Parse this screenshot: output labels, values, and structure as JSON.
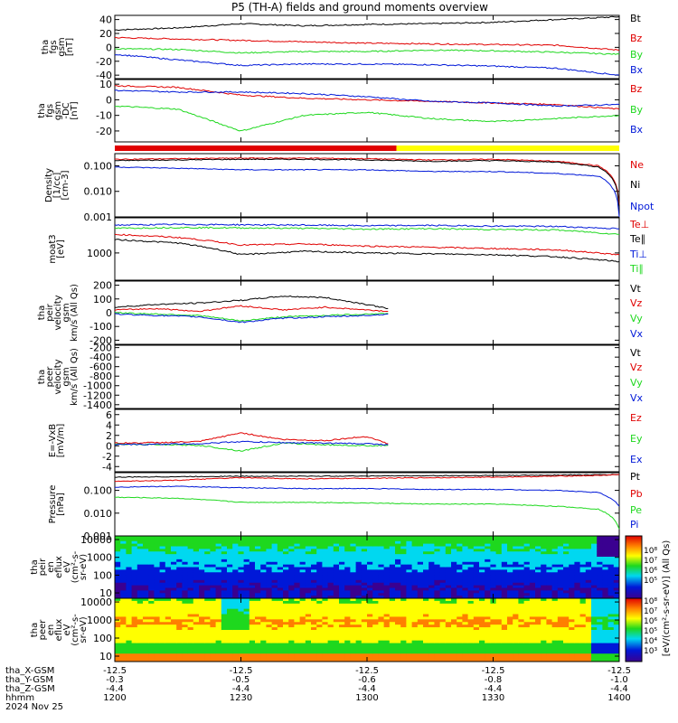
{
  "title": "P5 (TH-A) fields and ground moments overview",
  "colors": {
    "black": "#000000",
    "red": "#e00000",
    "green": "#1ed81e",
    "blue": "#0018d8",
    "yellow": "#ffff00"
  },
  "chart_data": [
    {
      "type": "line",
      "id": "fgs_gsm",
      "ylabel": [
        "tha",
        "fgs",
        "gsm",
        "[nT]"
      ],
      "ylim": [
        -45,
        46
      ],
      "yscale": "linear",
      "yticks": [
        -40,
        -20,
        0,
        20,
        40
      ],
      "x": [
        1200,
        1215,
        1230,
        1245,
        1300,
        1315,
        1330,
        1345,
        1400
      ],
      "series": [
        {
          "name": "Bt",
          "color": "#000000",
          "values": [
            25,
            28,
            34,
            31,
            33,
            34,
            36,
            40,
            44
          ]
        },
        {
          "name": "Bz",
          "color": "#e00000",
          "values": [
            14,
            12,
            10,
            8,
            6,
            5,
            4,
            3,
            -4
          ]
        },
        {
          "name": "By",
          "color": "#1ed81e",
          "values": [
            -2,
            -3,
            -8,
            -6,
            -6,
            -4,
            -5,
            -7,
            -10
          ]
        },
        {
          "name": "Bx",
          "color": "#0018d8",
          "values": [
            -10,
            -18,
            -26,
            -24,
            -24,
            -25,
            -27,
            -30,
            -40
          ]
        }
      ]
    },
    {
      "type": "line",
      "id": "fgs_gsm_detrended",
      "ylabel": [
        "tha",
        "fgs",
        "gsm",
        "-DC",
        "[nT]"
      ],
      "ylim": [
        -27,
        13
      ],
      "yscale": "linear",
      "yticks": [
        -20,
        -10,
        0,
        10
      ],
      "x": [
        1200,
        1215,
        1230,
        1245,
        1300,
        1315,
        1330,
        1345,
        1400
      ],
      "series": [
        {
          "name": "Bz",
          "color": "#e00000",
          "values": [
            9,
            8,
            3,
            1,
            0,
            -1,
            -2,
            -3,
            -6
          ]
        },
        {
          "name": "By",
          "color": "#1ed81e",
          "values": [
            -4,
            -6,
            -20,
            -10,
            -8,
            -12,
            -14,
            -12,
            -10
          ]
        },
        {
          "name": "Bx",
          "color": "#0018d8",
          "values": [
            6,
            5,
            5,
            4,
            2,
            -1,
            -2,
            -4,
            -3
          ]
        }
      ]
    },
    {
      "type": "line",
      "id": "density",
      "ylabel": [
        "Density",
        "[1/cc]",
        "[cm-3]"
      ],
      "ylim": [
        0.001,
        0.3
      ],
      "yscale": "log",
      "yticks": [
        0.001,
        0.01,
        0.1
      ],
      "yticklabels": [
        "0.001",
        "0.010",
        "0.100"
      ],
      "x": [
        1200,
        1215,
        1230,
        1245,
        1300,
        1315,
        1330,
        1345,
        1355,
        1400
      ],
      "series": [
        {
          "name": "Ne",
          "color": "#e00000",
          "values": [
            0.18,
            0.19,
            0.2,
            0.2,
            0.19,
            0.17,
            0.18,
            0.15,
            0.1,
            0.003
          ]
        },
        {
          "name": "Ni",
          "color": "#000000",
          "values": [
            0.16,
            0.17,
            0.18,
            0.18,
            0.17,
            0.15,
            0.16,
            0.14,
            0.09,
            0.002
          ]
        },
        {
          "name": "Npot",
          "color": "#0018d8",
          "values": [
            0.09,
            0.08,
            0.07,
            0.07,
            0.07,
            0.06,
            0.06,
            0.05,
            0.04,
            0.001
          ]
        }
      ]
    },
    {
      "type": "line",
      "id": "temperature",
      "ylabel": [
        "moat3",
        "[eV]"
      ],
      "ylim": [
        200,
        8000
      ],
      "yscale": "log",
      "yticks": [
        1000
      ],
      "yticklabels": [
        "1000"
      ],
      "x": [
        1200,
        1215,
        1230,
        1245,
        1300,
        1315,
        1330,
        1345,
        1400
      ],
      "series": [
        {
          "name": "Te⊥",
          "color": "#e00000",
          "values": [
            3000,
            2500,
            1600,
            1700,
            1500,
            1400,
            1300,
            1200,
            900
          ]
        },
        {
          "name": "Te∥",
          "color": "#000000",
          "values": [
            2200,
            1800,
            900,
            1100,
            1000,
            950,
            900,
            800,
            600
          ]
        },
        {
          "name": "Ti⊥",
          "color": "#0018d8",
          "values": [
            5200,
            5400,
            5300,
            5200,
            5000,
            5100,
            4900,
            4800,
            4200
          ]
        },
        {
          "name": "Ti∥",
          "color": "#1ed81e",
          "values": [
            4300,
            4500,
            4400,
            4300,
            4100,
            4200,
            4000,
            3900,
            3000
          ]
        }
      ]
    },
    {
      "type": "line",
      "id": "peir_velocity",
      "ylabel": [
        "tha",
        "peir",
        "velocity",
        "gsm",
        "km/s (All Qs)"
      ],
      "ylim": [
        -230,
        230
      ],
      "yscale": "linear",
      "yticks": [
        -200,
        -100,
        0,
        100,
        200
      ],
      "x": [
        1200,
        1210,
        1220,
        1230,
        1240,
        1250,
        1300,
        1305
      ],
      "series": [
        {
          "name": "Vt",
          "color": "#000000",
          "values": [
            40,
            60,
            70,
            90,
            120,
            110,
            60,
            30
          ]
        },
        {
          "name": "Vz",
          "color": "#e00000",
          "values": [
            20,
            30,
            10,
            50,
            20,
            40,
            20,
            10
          ]
        },
        {
          "name": "Vy",
          "color": "#1ed81e",
          "values": [
            0,
            -10,
            -20,
            -60,
            -30,
            -20,
            -10,
            -5
          ]
        },
        {
          "name": "Vx",
          "color": "#0018d8",
          "values": [
            -10,
            -20,
            -30,
            -70,
            -40,
            -30,
            -20,
            -10
          ]
        }
      ]
    },
    {
      "type": "line",
      "id": "peer_velocity",
      "ylabel": [
        "tha",
        "peer",
        "velocity",
        "gsm",
        "km/s (All Qs)"
      ],
      "ylim": [
        -1480,
        -150
      ],
      "yscale": "linear",
      "yticks": [
        -1400,
        -1200,
        -1000,
        -800,
        -600,
        -400,
        -200
      ],
      "x": [],
      "series": [
        {
          "name": "Vt",
          "color": "#000000",
          "values": []
        },
        {
          "name": "Vz",
          "color": "#e00000",
          "values": []
        },
        {
          "name": "Vy",
          "color": "#1ed81e",
          "values": []
        },
        {
          "name": "Vx",
          "color": "#0018d8",
          "values": []
        }
      ]
    },
    {
      "type": "line",
      "id": "efield",
      "ylabel": [
        "E=-VxB",
        "[mV/m]"
      ],
      "ylim": [
        -5,
        7
      ],
      "yscale": "linear",
      "yticks": [
        -4,
        -2,
        0,
        2,
        4,
        6
      ],
      "x": [
        1200,
        1210,
        1220,
        1230,
        1240,
        1250,
        1300,
        1305
      ],
      "series": [
        {
          "name": "Ez",
          "color": "#e00000",
          "values": [
            0.5,
            0.6,
            0.8,
            2.5,
            1.2,
            1.0,
            1.8,
            0.4
          ]
        },
        {
          "name": "Ey",
          "color": "#1ed81e",
          "values": [
            0.3,
            0.2,
            0.1,
            -1.0,
            0.5,
            0.2,
            0.0,
            0.1
          ]
        },
        {
          "name": "Ex",
          "color": "#0018d8",
          "values": [
            0.2,
            0.3,
            0.4,
            0.8,
            0.6,
            0.5,
            0.4,
            0.2
          ]
        }
      ]
    },
    {
      "type": "line",
      "id": "pressure",
      "ylabel": [
        "Pressure",
        "[nPa]"
      ],
      "ylim": [
        0.001,
        0.6
      ],
      "yscale": "log",
      "yticks": [
        0.001,
        0.01,
        0.1
      ],
      "yticklabels": [
        "0.001",
        "0.010",
        "0.100"
      ],
      "x": [
        1200,
        1215,
        1230,
        1245,
        1300,
        1315,
        1330,
        1345,
        1355,
        1400
      ],
      "series": [
        {
          "name": "Pt",
          "color": "#000000",
          "values": [
            0.38,
            0.4,
            0.42,
            0.42,
            0.43,
            0.44,
            0.45,
            0.47,
            0.48,
            0.5
          ]
        },
        {
          "name": "Pb",
          "color": "#e00000",
          "values": [
            0.25,
            0.28,
            0.36,
            0.32,
            0.34,
            0.36,
            0.38,
            0.42,
            0.45,
            0.5
          ]
        },
        {
          "name": "Pe",
          "color": "#1ed81e",
          "values": [
            0.05,
            0.045,
            0.03,
            0.03,
            0.028,
            0.025,
            0.025,
            0.02,
            0.015,
            0.002
          ]
        },
        {
          "name": "Pi",
          "color": "#0018d8",
          "values": [
            0.14,
            0.15,
            0.13,
            0.12,
            0.12,
            0.11,
            0.11,
            0.1,
            0.08,
            0.02
          ]
        }
      ]
    },
    {
      "type": "heatmap",
      "id": "peir_spectrogram",
      "ylabel": [
        "tha",
        "peir",
        "en",
        "eflux",
        "eV",
        "(cm²-s-",
        "sr-eV)"
      ],
      "ylim": [
        5,
        16000
      ],
      "yscale": "log",
      "yticks": [
        10,
        100,
        1000,
        10000
      ],
      "yticklabels": [
        "10",
        "100",
        "1000",
        "10000"
      ]
    },
    {
      "type": "heatmap",
      "id": "peer_spectrogram",
      "ylabel": [
        "tha",
        "peer",
        "en",
        "eflux",
        "eV",
        "(cm²-s-",
        "sr-eV)"
      ],
      "ylim": [
        5,
        16000
      ],
      "yscale": "log",
      "yticks": [
        10,
        100,
        1000,
        10000
      ],
      "yticklabels": [
        "10",
        "100",
        "1000",
        "10000"
      ]
    }
  ],
  "quality_bar": {
    "segments": [
      {
        "from": 1200,
        "to": 1307,
        "color": "#e00000"
      },
      {
        "from": 1307,
        "to": 1400,
        "color": "#ffff00"
      }
    ]
  },
  "colorbar": {
    "label": "[eV/(cm²-s-sr-eV)] (All Qs)",
    "ticks_top": [
      "10⁸",
      "10⁷",
      "10⁶",
      "10⁵"
    ],
    "ticks_bottom": [
      "10⁸",
      "10⁷",
      "10⁶",
      "10⁵",
      "10⁴",
      "10³"
    ]
  },
  "xaxis": {
    "times": [
      1200,
      1230,
      1300,
      1330,
      1400
    ],
    "labels": [
      "tha_X-GSM",
      "tha_Y-GSM",
      "tha_Z-GSM",
      "hhmm",
      "2024 Nov 25"
    ],
    "rows": [
      [
        "-12.5",
        "-12.5",
        "-12.5",
        "-12.5",
        "-12.5"
      ],
      [
        "-0.3",
        "-0.5",
        "-0.6",
        "-0.8",
        "-1.0"
      ],
      [
        "-4.4",
        "-4.4",
        "-4.4",
        "-4.4",
        "-4.4"
      ],
      [
        "1200",
        "1230",
        "1300",
        "1330",
        "1400"
      ]
    ]
  }
}
